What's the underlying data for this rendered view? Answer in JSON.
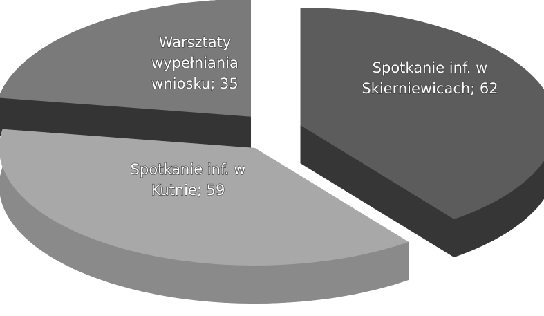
{
  "chart_data": {
    "type": "pie3d",
    "categories": [
      "Spotkanie inf. w Skierniewicach",
      "Spotkanie inf. w Kutnie",
      "Warsztaty wypełniania wniosku"
    ],
    "values": [
      62,
      59,
      35
    ],
    "value_labels": [
      "Spotkanie inf. w Skierniewicach; 62",
      "Spotkanie inf. w Kutnie; 59",
      "Warsztaty wypełniania wniosku; 35"
    ],
    "colors": [
      "#5c5c5c",
      "#a8a8a8",
      "#7a7a7a"
    ],
    "side_colors": [
      "#363636",
      "#8a8a8a",
      "#343434"
    ]
  }
}
